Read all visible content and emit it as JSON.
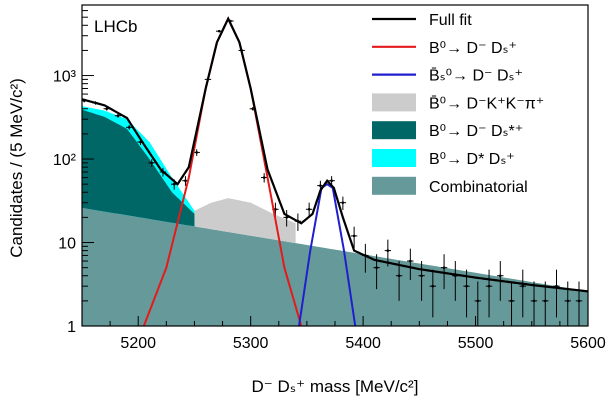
{
  "chart_data": {
    "type": "line",
    "title": "",
    "experiment_label": "LHCb",
    "xlabel": "D⁻ Dₛ⁺ mass [MeV/c²]",
    "ylabel": "Candidates / (5 MeV/c²)",
    "xlim": [
      5150,
      5600
    ],
    "ylim": [
      1,
      7000
    ],
    "yscale": "log",
    "x_ticks": [
      "5200",
      "5300",
      "5400",
      "5500",
      "5600"
    ],
    "y_ticks": [
      "1",
      "10",
      "10²",
      "10³"
    ],
    "legend_position": "top-right",
    "legend": [
      {
        "label": "Full fit",
        "style": "line",
        "color": "#000000"
      },
      {
        "label": "B⁰→ D⁻ Dₛ⁺",
        "style": "line",
        "color": "#e41a1c"
      },
      {
        "label": "B̄ₛ⁰→ D⁻ Dₛ⁺",
        "style": "line",
        "color": "#1f1fd0"
      },
      {
        "label": "B̄⁰→ D⁻K⁺K⁻π⁺",
        "style": "fill",
        "color": "#cccccc"
      },
      {
        "label": "B⁰→ D⁻ Dₛ*⁺",
        "style": "fill",
        "color": "#006666"
      },
      {
        "label": "B⁰→ D* Dₛ⁺",
        "style": "fill",
        "color": "#00ffff"
      },
      {
        "label": "Combinatorial",
        "style": "fill",
        "color": "#669999"
      }
    ],
    "components": {
      "combinatorial": {
        "x": [
          5150,
          5600
        ],
        "y": [
          26,
          2.6
        ]
      },
      "b0_to_dstar_ds": {
        "x": [
          5150,
          5170,
          5190,
          5210,
          5230,
          5250
        ],
        "y": [
          430,
          380,
          300,
          160,
          60,
          24
        ]
      },
      "b0_to_d_dsstar": {
        "x": [
          5150,
          5170,
          5190,
          5210,
          5230,
          5250
        ],
        "y": [
          390,
          320,
          230,
          100,
          40,
          22
        ]
      },
      "b_to_dkkpi": {
        "x": [
          5230,
          5250,
          5265,
          5280,
          5300,
          5320,
          5340
        ],
        "y": [
          21,
          24,
          30,
          34,
          30,
          22,
          17
        ]
      },
      "b0_signal": {
        "x": [
          5205,
          5225,
          5245,
          5260,
          5270,
          5280,
          5290,
          5300,
          5315,
          5330,
          5345
        ],
        "y": [
          1,
          5,
          60,
          700,
          2500,
          4800,
          2500,
          700,
          60,
          5,
          1
        ]
      },
      "bs_signal": {
        "x": [
          5343,
          5353,
          5363,
          5368,
          5373,
          5383,
          5393
        ],
        "y": [
          1,
          8,
          45,
          50,
          45,
          8,
          1
        ]
      },
      "full_fit": {
        "x": [
          5150,
          5170,
          5190,
          5205,
          5220,
          5235,
          5245,
          5260,
          5270,
          5280,
          5290,
          5300,
          5315,
          5330,
          5345,
          5355,
          5362,
          5368,
          5374,
          5382,
          5392,
          5410,
          5450,
          5500,
          5550,
          5600
        ],
        "y": [
          520,
          440,
          310,
          150,
          75,
          50,
          80,
          700,
          2500,
          4800,
          2500,
          700,
          75,
          22,
          17,
          22,
          42,
          55,
          45,
          20,
          8,
          6.2,
          4.8,
          3.8,
          3.1,
          2.6
        ]
      }
    },
    "data_points": {
      "x": [
        5152,
        5162,
        5172,
        5182,
        5192,
        5202,
        5212,
        5222,
        5232,
        5242,
        5252,
        5262,
        5272,
        5282,
        5292,
        5302,
        5312,
        5322,
        5332,
        5342,
        5352,
        5362,
        5372,
        5382,
        5392,
        5402,
        5412,
        5422,
        5432,
        5442,
        5452,
        5462,
        5472,
        5482,
        5492,
        5502,
        5512,
        5522,
        5532,
        5542,
        5552,
        5562,
        5572,
        5582,
        5592
      ],
      "y": [
        500,
        470,
        400,
        330,
        240,
        160,
        90,
        70,
        50,
        55,
        120,
        900,
        3400,
        4500,
        2000,
        400,
        60,
        25,
        20,
        18,
        25,
        48,
        55,
        30,
        12,
        7,
        5,
        8,
        4,
        6,
        4,
        3,
        5,
        4,
        3,
        2,
        3,
        4,
        2,
        3,
        2,
        2,
        3,
        2,
        2
      ]
    }
  }
}
